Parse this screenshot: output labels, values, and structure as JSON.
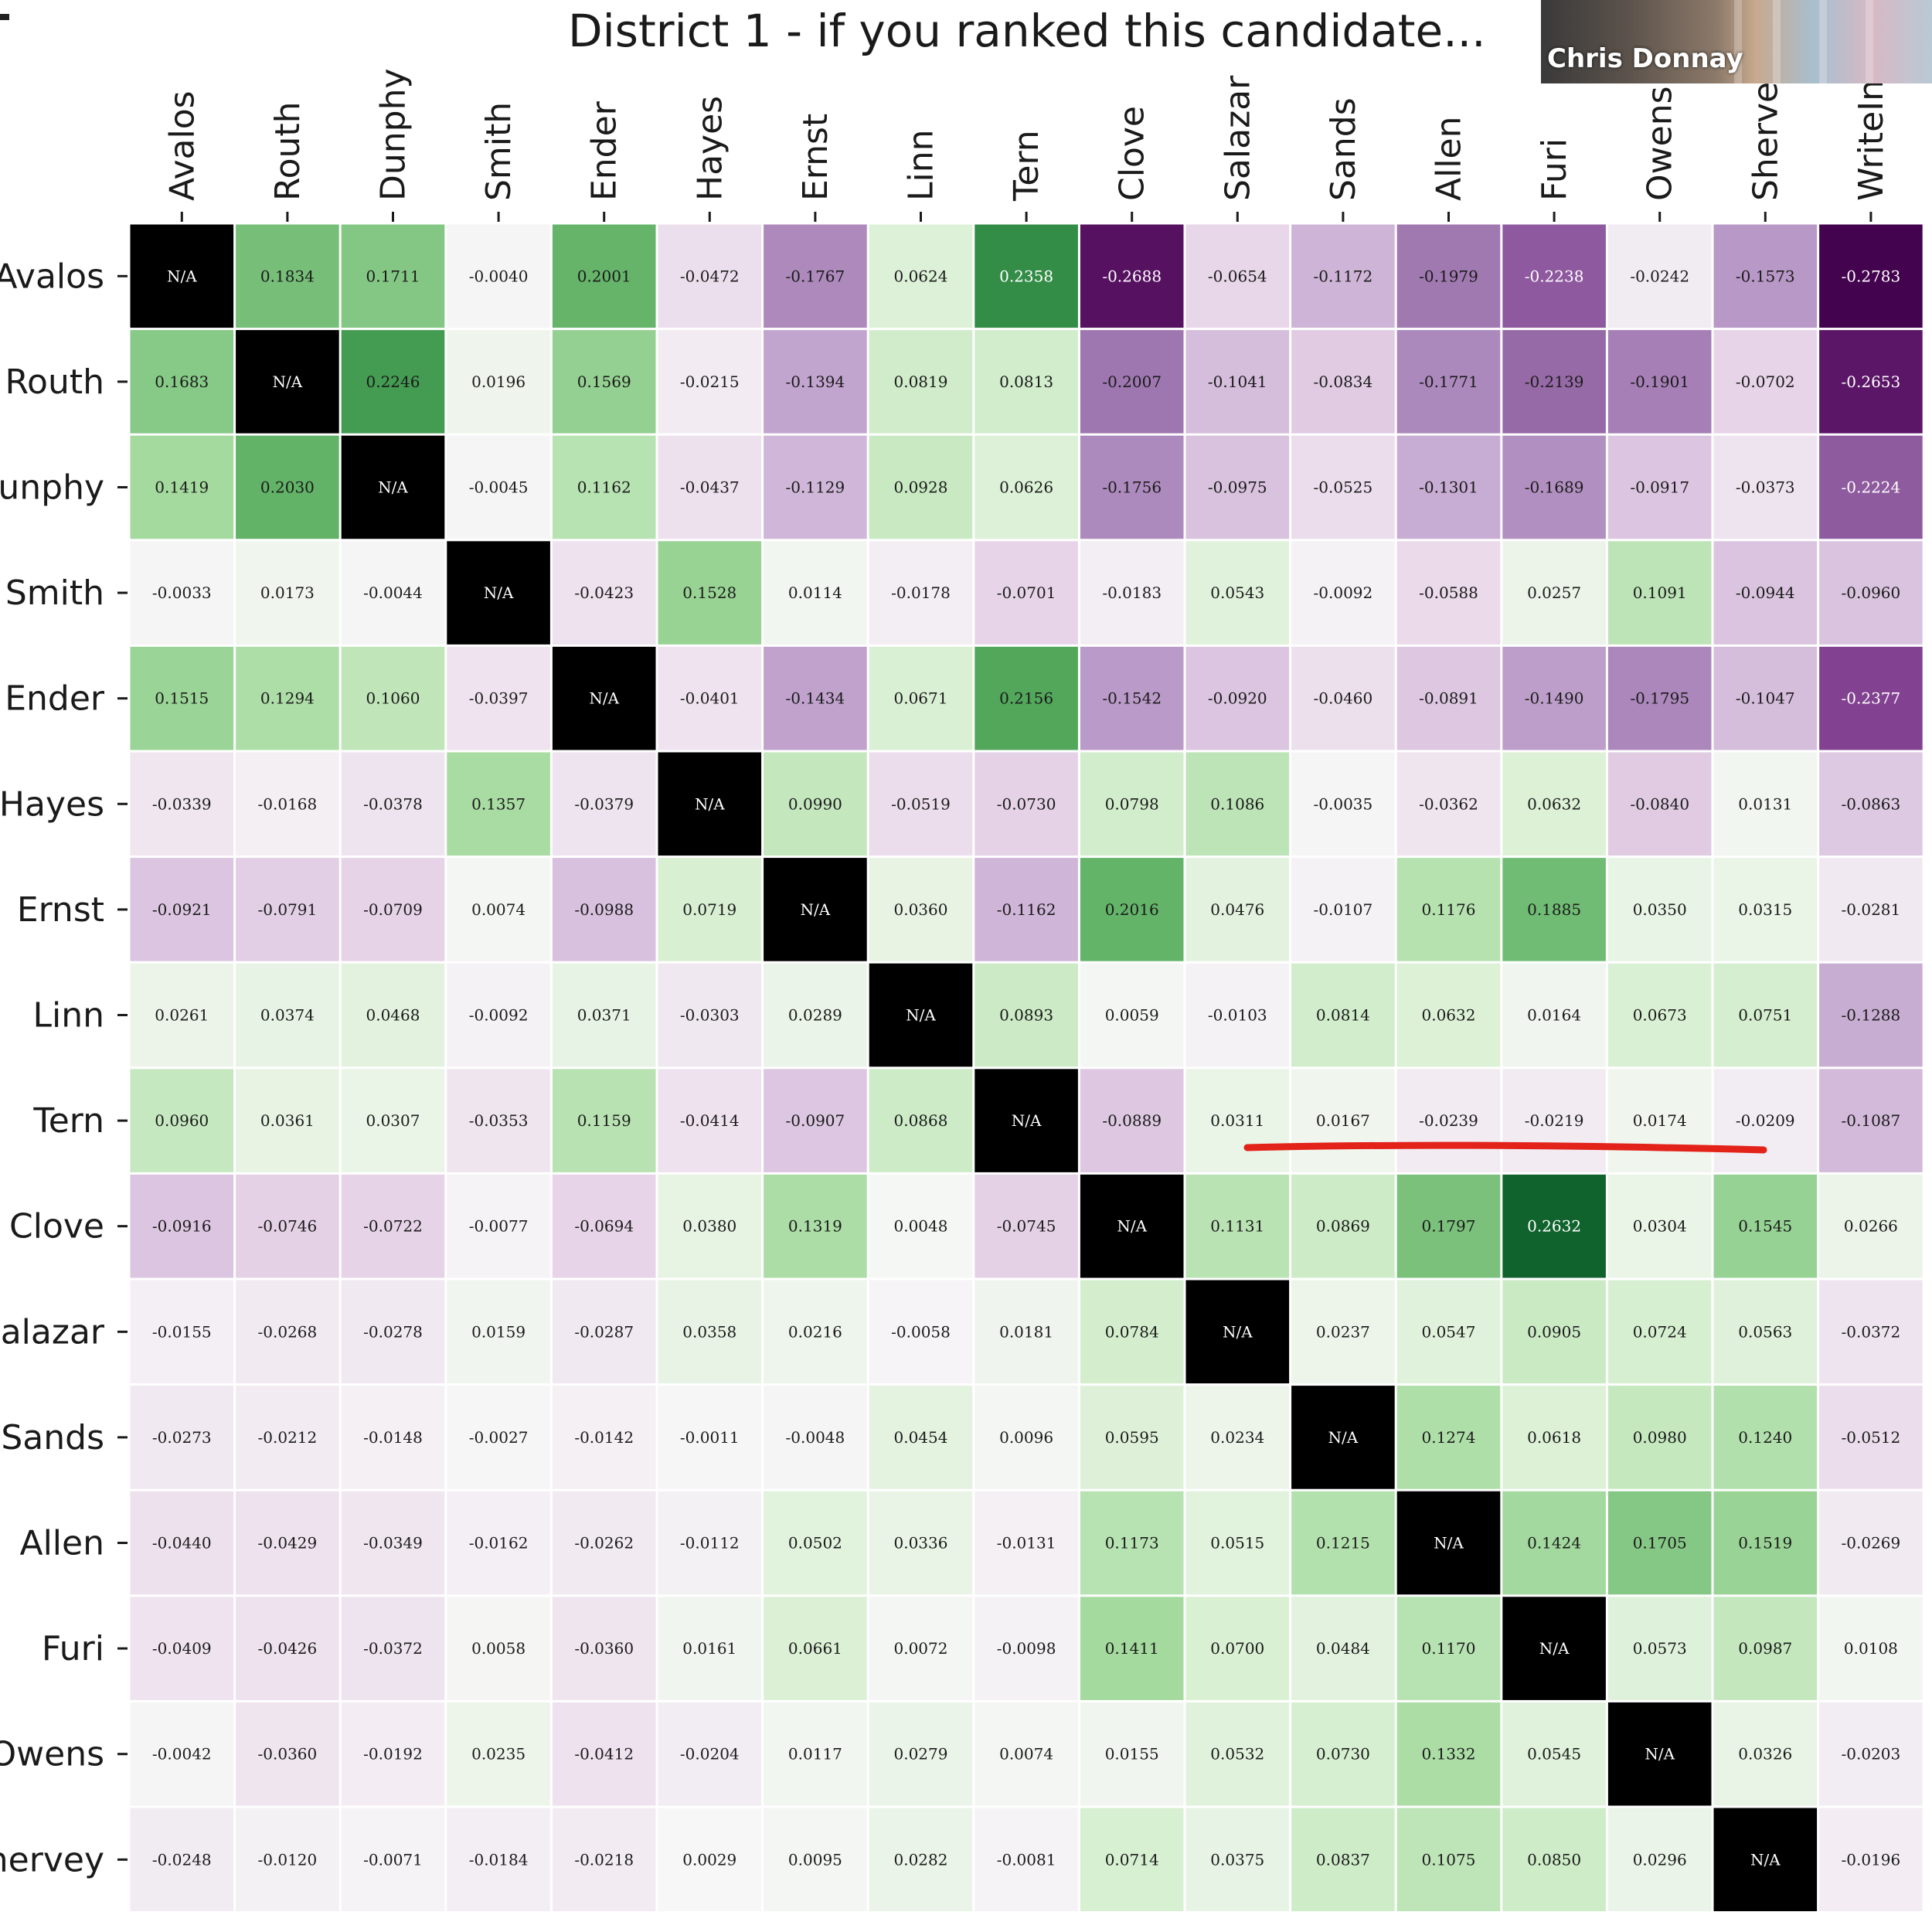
{
  "title": "District 1 - if you ranked this candidate...",
  "video_tile": {
    "participant_name": "Chris Donnay"
  },
  "annotation": {
    "color": "#e32219",
    "type": "red-underline"
  },
  "colors": {
    "diagonal": "#000000",
    "positive": "#1b5e20",
    "negative": "#40004b",
    "neutral": "#f7f7f7"
  },
  "chart_data": {
    "type": "heatmap",
    "title": "District 1 - if you ranked this candidate...",
    "colormap": "PRGn",
    "vlim": [
      -0.28,
      0.28
    ],
    "diagonal_label": "N/A",
    "columns": [
      "Avalos",
      "Routh",
      "Dunphy",
      "Smith",
      "Ender",
      "Hayes",
      "Ernst",
      "Linn",
      "Tern",
      "Clove",
      "Salazar",
      "Sands",
      "Allen",
      "Furi",
      "Owens",
      "Sherve",
      "WriteIn"
    ],
    "rows": [
      "Avalos",
      "Routh",
      "unphy",
      "Smith",
      "Ender",
      "Hayes",
      "Ernst",
      "Linn",
      "Tern",
      "Clove",
      "Salazar",
      "Sands",
      "Allen",
      "Furi",
      "Owens",
      "hervey"
    ],
    "values": [
      [
        null,
        0.1834,
        0.1711,
        -0.004,
        0.2001,
        -0.0472,
        -0.1767,
        0.0624,
        0.2358,
        -0.2688,
        -0.0654,
        -0.1172,
        -0.1979,
        -0.2238,
        -0.0242,
        -0.1573,
        -0.2783
      ],
      [
        0.1683,
        null,
        0.2246,
        0.0196,
        0.1569,
        -0.0215,
        -0.1394,
        0.0819,
        0.0813,
        -0.2007,
        -0.1041,
        -0.0834,
        -0.1771,
        -0.2139,
        -0.1901,
        -0.0702,
        -0.2653
      ],
      [
        0.1419,
        0.203,
        null,
        -0.0045,
        0.1162,
        -0.0437,
        -0.1129,
        0.0928,
        0.0626,
        -0.1756,
        -0.0975,
        -0.0525,
        -0.1301,
        -0.1689,
        -0.0917,
        -0.0373,
        -0.2224
      ],
      [
        -0.0033,
        0.0173,
        -0.0044,
        null,
        -0.0423,
        0.1528,
        0.0114,
        -0.0178,
        -0.0701,
        -0.0183,
        0.0543,
        -0.0092,
        -0.0588,
        0.0257,
        0.1091,
        -0.0944,
        -0.096
      ],
      [
        0.1515,
        0.1294,
        0.106,
        -0.0397,
        null,
        -0.0401,
        -0.1434,
        0.0671,
        0.2156,
        -0.1542,
        -0.092,
        -0.046,
        -0.0891,
        -0.149,
        -0.1795,
        -0.1047,
        -0.2377
      ],
      [
        -0.0339,
        -0.0168,
        -0.0378,
        0.1357,
        -0.0379,
        null,
        0.099,
        -0.0519,
        -0.073,
        0.0798,
        0.1086,
        -0.0035,
        -0.0362,
        0.0632,
        -0.084,
        0.0131,
        -0.0863
      ],
      [
        -0.0921,
        -0.0791,
        -0.0709,
        0.0074,
        -0.0988,
        0.0719,
        null,
        0.036,
        -0.1162,
        0.2016,
        0.0476,
        -0.0107,
        0.1176,
        0.1885,
        0.035,
        0.0315,
        -0.0281
      ],
      [
        0.0261,
        0.0374,
        0.0468,
        -0.0092,
        0.0371,
        -0.0303,
        0.0289,
        null,
        0.0893,
        0.0059,
        -0.0103,
        0.0814,
        0.0632,
        0.0164,
        0.0673,
        0.0751,
        -0.1288
      ],
      [
        0.096,
        0.0361,
        0.0307,
        -0.0353,
        0.1159,
        -0.0414,
        -0.0907,
        0.0868,
        null,
        -0.0889,
        0.0311,
        0.0167,
        -0.0239,
        -0.0219,
        0.0174,
        -0.0209,
        -0.1087
      ],
      [
        -0.0916,
        -0.0746,
        -0.0722,
        -0.0077,
        -0.0694,
        0.038,
        0.1319,
        0.0048,
        -0.0745,
        null,
        0.1131,
        0.0869,
        0.1797,
        0.2632,
        0.0304,
        0.1545,
        0.0266
      ],
      [
        -0.0155,
        -0.0268,
        -0.0278,
        0.0159,
        -0.0287,
        0.0358,
        0.0216,
        -0.0058,
        0.0181,
        0.0784,
        null,
        0.0237,
        0.0547,
        0.0905,
        0.0724,
        0.0563,
        -0.0372
      ],
      [
        -0.0273,
        -0.0212,
        -0.0148,
        -0.0027,
        -0.0142,
        -0.0011,
        -0.0048,
        0.0454,
        0.0096,
        0.0595,
        0.0234,
        null,
        0.1274,
        0.0618,
        0.098,
        0.124,
        -0.0512
      ],
      [
        -0.044,
        -0.0429,
        -0.0349,
        -0.0162,
        -0.0262,
        -0.0112,
        0.0502,
        0.0336,
        -0.0131,
        0.1173,
        0.0515,
        0.1215,
        null,
        0.1424,
        0.1705,
        0.1519,
        -0.0269
      ],
      [
        -0.0409,
        -0.0426,
        -0.0372,
        0.0058,
        -0.036,
        0.0161,
        0.0661,
        0.0072,
        -0.0098,
        0.1411,
        0.07,
        0.0484,
        0.117,
        null,
        0.0573,
        0.0987,
        0.0108
      ],
      [
        -0.0042,
        -0.036,
        -0.0192,
        0.0235,
        -0.0412,
        -0.0204,
        0.0117,
        0.0279,
        0.0074,
        0.0155,
        0.0532,
        0.073,
        0.1332,
        0.0545,
        null,
        0.0326,
        -0.0203
      ],
      [
        -0.0248,
        -0.012,
        -0.0071,
        -0.0184,
        -0.0218,
        0.0029,
        0.0095,
        0.0282,
        -0.0081,
        0.0714,
        0.0375,
        0.0837,
        0.1075,
        0.085,
        0.0296,
        null,
        -0.0196
      ]
    ]
  }
}
